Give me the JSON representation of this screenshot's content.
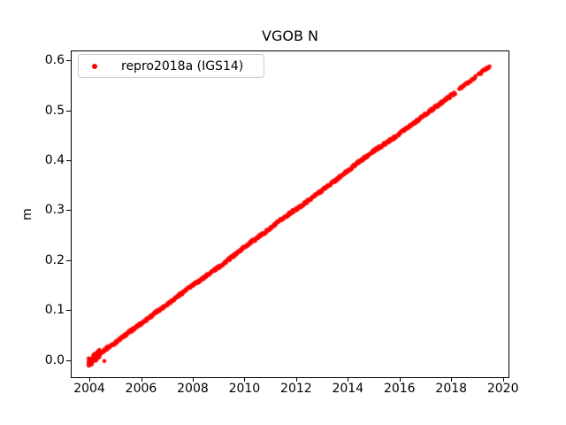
{
  "chart_data": {
    "type": "scatter",
    "title": "VGOB N",
    "xlabel": "",
    "ylabel": "m",
    "xlim": [
      2003.28,
      2020.25
    ],
    "ylim": [
      -0.036,
      0.62
    ],
    "xticks": [
      "2004",
      "2006",
      "2008",
      "2010",
      "2012",
      "2014",
      "2016",
      "2018",
      "2020"
    ],
    "yticks": [
      "0.0",
      "0.1",
      "0.2",
      "0.3",
      "0.4",
      "0.5",
      "0.6"
    ],
    "grid": false,
    "legend_position": "upper left",
    "series": [
      {
        "name": "repro2018a (IGS14)",
        "color": "#ff0000",
        "marker": "dot",
        "x_start": 2003.97,
        "x_end": 2019.5,
        "trend_slope_m_per_yr": 0.0384,
        "anchors": [
          [
            2003.97,
            -0.004
          ],
          [
            2004.1,
            0.0
          ],
          [
            2004.3,
            0.009
          ],
          [
            2004.6,
            0.021
          ],
          [
            2005.0,
            0.0345
          ],
          [
            2005.5,
            0.0545
          ],
          [
            2006.0,
            0.073
          ],
          [
            2006.5,
            0.0925
          ],
          [
            2007.0,
            0.1115
          ],
          [
            2007.5,
            0.131
          ],
          [
            2008.0,
            0.15
          ],
          [
            2008.35,
            0.162
          ],
          [
            2008.55,
            0.17
          ],
          [
            2009.0,
            0.186
          ],
          [
            2009.5,
            0.2055
          ],
          [
            2010.0,
            0.2265
          ],
          [
            2010.5,
            0.245
          ],
          [
            2011.0,
            0.2635
          ],
          [
            2011.4,
            0.28
          ],
          [
            2011.8,
            0.2955
          ],
          [
            2012.1,
            0.305
          ],
          [
            2012.5,
            0.3205
          ],
          [
            2013.0,
            0.34
          ],
          [
            2013.5,
            0.359
          ],
          [
            2014.0,
            0.379
          ],
          [
            2014.45,
            0.398
          ],
          [
            2014.6,
            0.402
          ],
          [
            2015.0,
            0.4185
          ],
          [
            2015.4,
            0.432
          ],
          [
            2015.8,
            0.446
          ],
          [
            2016.2,
            0.462
          ],
          [
            2016.7,
            0.48
          ],
          [
            2017.0,
            0.492
          ],
          [
            2017.5,
            0.511
          ],
          [
            2018.0,
            0.53
          ],
          [
            2018.16,
            0.535
          ],
          [
            2018.3,
            0.543
          ],
          [
            2018.6,
            0.553
          ],
          [
            2018.9,
            0.565
          ],
          [
            2019.1,
            0.573
          ],
          [
            2019.3,
            0.581
          ],
          [
            2019.5,
            0.589
          ]
        ],
        "gaps": [
          [
            2018.16,
            2018.3
          ],
          [
            2018.96,
            2019.05
          ]
        ],
        "sparse_after": 2018.3,
        "dt_dense": 0.02,
        "dt_sparse": 0.03,
        "noise": 0.005,
        "start_cluster": {
          "from": 2003.97,
          "to": 2004.4,
          "count": 70,
          "noise": 0.016
        },
        "outliers": [
          [
            2004.58,
            -0.002
          ],
          [
            2014.63,
            0.407
          ]
        ]
      }
    ]
  },
  "figure": {
    "background": "#ffffff",
    "text_color": "#000000",
    "legend_border_color": "#cccccc"
  }
}
